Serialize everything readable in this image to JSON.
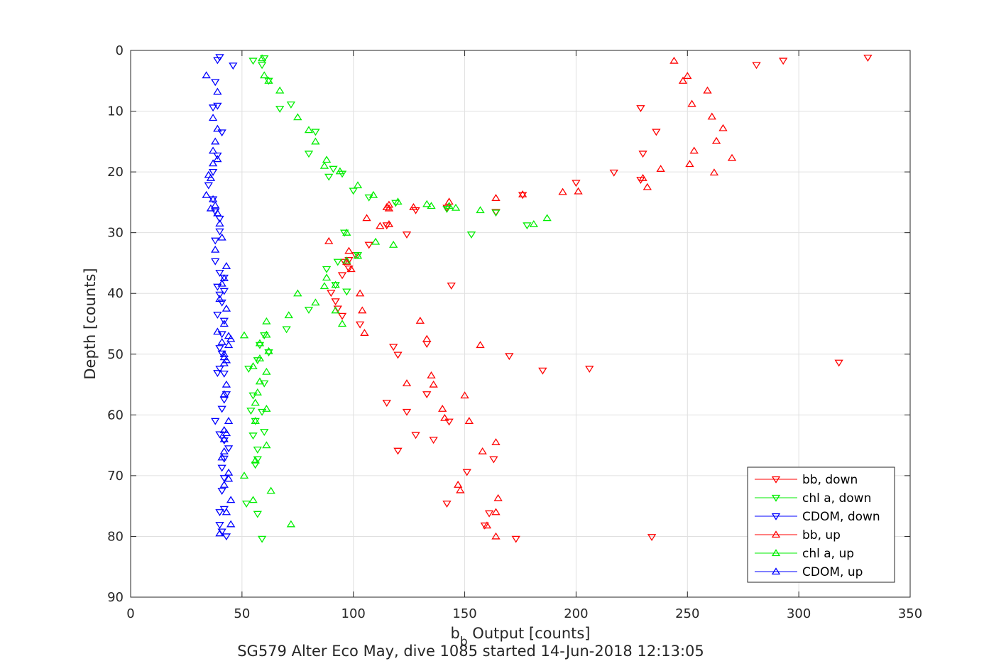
{
  "chart_data": {
    "type": "scatter",
    "xlabel_base": "b",
    "xlabel_sub": "b",
    "xlabel_rest": " Output [counts]",
    "ylabel": "Depth [counts]",
    "caption": "SG579 Alter Eco May, dive 1085 started 14-Jun-2018 12:13:05",
    "xlim": [
      0,
      350
    ],
    "ylim": [
      0,
      90
    ],
    "y_reversed": true,
    "grid": true,
    "legend_position": "bottom-right",
    "x_ticks": [
      0,
      50,
      100,
      150,
      200,
      250,
      300,
      350
    ],
    "y_ticks": [
      0,
      10,
      20,
      30,
      40,
      50,
      60,
      70,
      80,
      90
    ],
    "series": [
      {
        "name": "bb, down",
        "marker": "down",
        "color": "#ff0000",
        "x": [
          331,
          293,
          281,
          229,
          236,
          230,
          217,
          229,
          200,
          176,
          164,
          142,
          128,
          124,
          115,
          107,
          101,
          98,
          96,
          98,
          95,
          144,
          90,
          92,
          93,
          95,
          103,
          118,
          120,
          133,
          318,
          170,
          206,
          185,
          133,
          124,
          115,
          128,
          143,
          120,
          136,
          163,
          151,
          142,
          159,
          161,
          173,
          234
        ],
        "y": [
          1.2,
          1.7,
          2.4,
          9.5,
          13.4,
          17.0,
          20.1,
          21.3,
          21.8,
          23.8,
          26.6,
          25.9,
          26.3,
          30.3,
          28.8,
          32.0,
          33.7,
          34.5,
          34.8,
          35.9,
          37.0,
          38.7,
          39.9,
          41.3,
          42.5,
          43.7,
          45.1,
          48.8,
          50.1,
          48.3,
          51.4,
          50.3,
          52.4,
          52.7,
          56.6,
          59.5,
          58.0,
          63.3,
          61.1,
          65.9,
          64.1,
          67.3,
          69.4,
          74.6,
          78.2,
          76.2,
          80.4,
          80.1
        ]
      },
      {
        "name": "chl a, down",
        "marker": "down",
        "color": "#00ee00",
        "x": [
          55,
          60,
          59,
          62,
          67,
          72,
          83,
          80,
          91,
          89,
          95,
          100,
          107,
          119,
          142,
          164,
          153,
          178,
          96,
          102,
          93,
          88,
          92,
          97,
          80,
          70,
          60,
          58,
          53,
          62,
          57,
          60,
          55,
          54,
          59,
          56,
          60,
          55,
          57,
          57,
          56,
          52,
          57,
          59
        ],
        "y": [
          1.7,
          1.3,
          2.4,
          5.0,
          9.6,
          8.9,
          13.4,
          17.0,
          19.5,
          20.8,
          20.3,
          23.1,
          24.2,
          25.1,
          26.1,
          26.7,
          30.3,
          28.8,
          30.0,
          33.7,
          34.8,
          36.0,
          38.6,
          39.7,
          42.7,
          45.9,
          46.9,
          48.5,
          52.4,
          49.7,
          51.0,
          54.8,
          56.8,
          59.3,
          59.5,
          61.0,
          62.8,
          63.4,
          65.7,
          67.3,
          68.2,
          74.6,
          76.3,
          80.4
        ]
      },
      {
        "name": "CDOM, down",
        "marker": "down",
        "color": "#0000ff",
        "x": [
          40,
          39,
          46,
          38,
          39,
          37,
          41,
          39,
          37,
          35,
          37,
          38,
          40,
          40,
          38,
          38,
          40,
          42,
          39,
          42,
          40,
          41,
          39,
          42,
          41,
          40,
          41,
          40,
          42,
          39,
          43,
          42,
          41,
          38,
          40,
          42,
          44,
          42,
          41,
          42,
          41,
          42,
          40,
          40,
          41,
          43
        ],
        "y": [
          1.1,
          1.6,
          2.5,
          5.2,
          9.1,
          9.4,
          13.5,
          17.3,
          20.0,
          22.2,
          24.5,
          26.5,
          27.7,
          29.8,
          31.3,
          34.7,
          36.6,
          37.4,
          38.9,
          39.6,
          40.2,
          41.5,
          43.5,
          44.5,
          46.7,
          49.0,
          49.9,
          52.4,
          53.2,
          53.1,
          56.6,
          57.5,
          59.0,
          61.0,
          63.2,
          64.2,
          65.5,
          67.2,
          68.7,
          70.4,
          72.5,
          75.5,
          76.0,
          78.1,
          79.2,
          80.0
        ]
      },
      {
        "name": "bb, up",
        "marker": "up",
        "color": "#ff0000",
        "x": [
          244,
          250,
          248,
          259,
          252,
          261,
          266,
          263,
          253,
          270,
          238,
          251,
          262,
          232,
          230,
          201,
          194,
          176,
          164,
          143,
          127,
          116,
          116,
          115,
          112,
          106,
          116,
          89,
          98,
          97,
          99,
          103,
          104,
          105,
          130,
          133,
          135,
          157,
          136,
          124,
          150,
          140,
          152,
          141,
          164,
          158,
          165,
          147,
          148,
          164,
          160,
          164
        ],
        "y": [
          1.7,
          4.2,
          5.0,
          6.6,
          8.8,
          10.9,
          12.8,
          14.9,
          16.5,
          17.7,
          19.5,
          18.7,
          20.1,
          22.5,
          21.0,
          23.2,
          23.3,
          23.7,
          24.3,
          24.9,
          25.8,
          26.0,
          25.4,
          25.8,
          28.9,
          27.6,
          28.6,
          31.4,
          33.0,
          34.8,
          36.0,
          40.0,
          42.8,
          46.5,
          44.5,
          47.5,
          53.5,
          48.5,
          55.0,
          54.8,
          56.8,
          59.0,
          61.0,
          60.5,
          64.5,
          66.0,
          73.7,
          71.5,
          72.4,
          76.0,
          78.2,
          80.0
        ]
      },
      {
        "name": "chl a, up",
        "marker": "up",
        "color": "#00ee00",
        "x": [
          59,
          60,
          62,
          67,
          75,
          80,
          83,
          88,
          87,
          94,
          102,
          109,
          120,
          133,
          135,
          143,
          146,
          157,
          187,
          181,
          118,
          110,
          102,
          97,
          97,
          88,
          87,
          92,
          92,
          95,
          83,
          75,
          71,
          61,
          61,
          51,
          58,
          58,
          61,
          56,
          62,
          55,
          61,
          57,
          58,
          56,
          61,
          63,
          56,
          51,
          55,
          72
        ],
        "y": [
          1.3,
          4.1,
          5.0,
          6.6,
          11.0,
          13.1,
          15.0,
          18.0,
          19.0,
          19.9,
          22.2,
          23.8,
          24.9,
          25.3,
          25.6,
          25.6,
          25.9,
          26.3,
          27.6,
          28.6,
          32.0,
          31.5,
          33.8,
          30.0,
          34.6,
          37.4,
          38.8,
          38.6,
          42.8,
          45.0,
          41.5,
          40.0,
          43.6,
          44.6,
          46.8,
          46.9,
          48.2,
          50.7,
          52.9,
          58.0,
          49.5,
          52.0,
          59.0,
          56.3,
          54.5,
          61.0,
          65.0,
          72.5,
          67.5,
          70.0,
          74.0,
          78.0
        ]
      },
      {
        "name": "CDOM, up",
        "marker": "up",
        "color": "#0000ff",
        "x": [
          34,
          39,
          37,
          39,
          38,
          37,
          39,
          37,
          35,
          36,
          34,
          37,
          38,
          36,
          39,
          40,
          41,
          38,
          42,
          43,
          41,
          40,
          43,
          42,
          39,
          44,
          41,
          42,
          43,
          45,
          44,
          42,
          42,
          43,
          42,
          44,
          42,
          42,
          43,
          42,
          41,
          44,
          44,
          42,
          45,
          43,
          45,
          40
        ],
        "y": [
          4.1,
          6.8,
          11.1,
          12.9,
          15.0,
          16.5,
          17.9,
          18.6,
          20.5,
          21.0,
          23.8,
          24.5,
          25.5,
          26.0,
          26.8,
          28.5,
          30.8,
          32.8,
          37.5,
          35.5,
          38.4,
          40.9,
          42.5,
          45.0,
          46.3,
          47.0,
          48.0,
          50.0,
          51.0,
          47.5,
          48.5,
          50.5,
          51.5,
          55.0,
          56.6,
          61.0,
          62.5,
          64.0,
          63.0,
          66.0,
          67.0,
          69.5,
          70.5,
          71.5,
          74.0,
          76.0,
          78.0,
          79.5
        ]
      }
    ]
  }
}
